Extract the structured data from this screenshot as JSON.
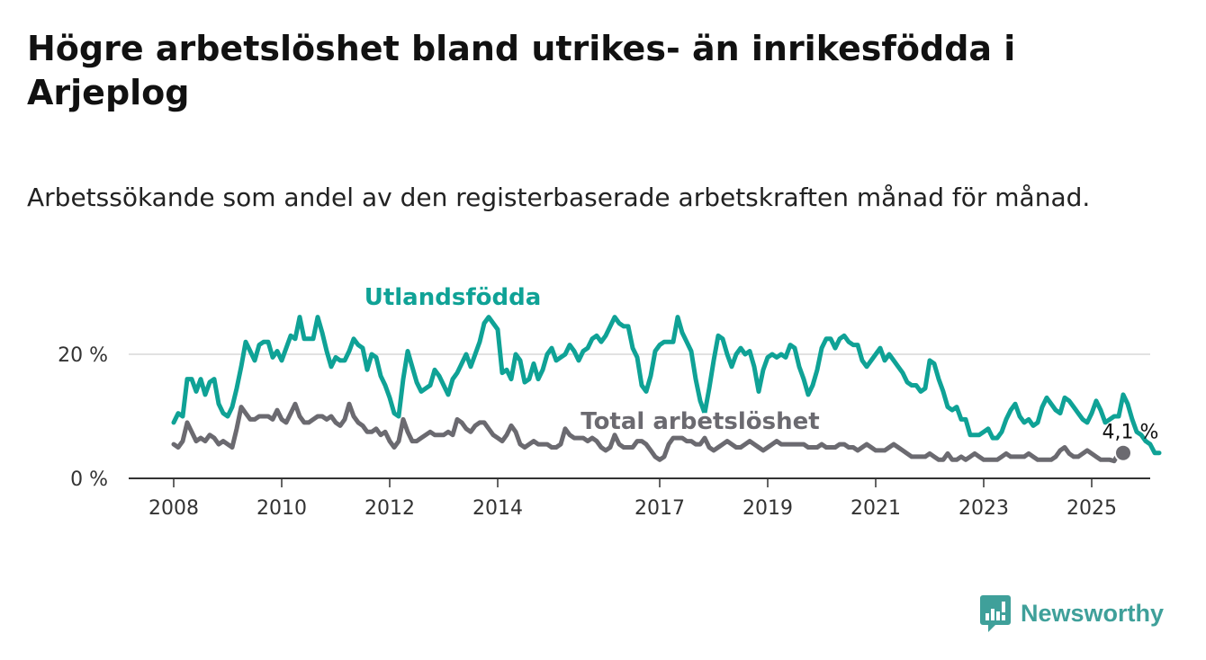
{
  "title": "Högre arbetslöshet bland utrikes- än inrikesfödda i Arjeplog",
  "subtitle": "Arbetssökande som andel av den registerbaserade arbetskraften månad för månad.",
  "brand": "Newsworthy",
  "colors": {
    "foreign": "#0fa296",
    "total": "#6b6a70",
    "grid": "#d9d9d9",
    "axis": "#333333",
    "brand": "#3fa09a"
  },
  "chart_data": {
    "type": "line",
    "x_ticks": [
      "2008",
      "2010",
      "2012",
      "2014",
      "2017",
      "2019",
      "2021",
      "2023",
      "2025"
    ],
    "y_ticks": [
      "0 %",
      "20 %"
    ],
    "ylim": [
      0,
      27
    ],
    "grid": true,
    "end_label": "4,1 %",
    "series": [
      {
        "name": "Utlandsfödda",
        "color": "#0fa296",
        "x_start": "2008-01",
        "x_step": "1 month",
        "values": [
          9,
          10.5,
          10,
          16,
          16,
          14,
          16,
          13.5,
          15.5,
          16,
          12,
          10.5,
          10,
          11.5,
          14.5,
          18,
          22,
          20.5,
          19,
          21.5,
          22,
          22,
          19.5,
          20.5,
          19,
          21,
          23,
          22.5,
          26,
          22.5,
          22.5,
          22.5,
          26,
          23.5,
          20.5,
          18,
          19.5,
          19,
          19,
          20.5,
          22.5,
          21.5,
          21,
          17.5,
          20,
          19.5,
          16.5,
          15,
          13,
          10.5,
          10,
          16,
          20.5,
          18,
          15.5,
          14,
          14.5,
          15,
          17.5,
          16.5,
          15,
          13.5,
          16,
          17,
          18.5,
          20,
          18,
          20,
          22,
          25,
          26,
          25,
          24,
          17,
          17.5,
          16,
          20,
          19,
          15.5,
          16,
          18.5,
          16,
          17.5,
          20,
          21,
          19,
          19.5,
          20,
          21.5,
          20.5,
          19,
          20.5,
          21,
          22.5,
          23,
          22,
          23,
          24.5,
          26,
          25,
          24.5,
          24.5,
          21,
          19.5,
          15,
          14,
          16.5,
          20.5,
          21.5,
          22,
          22,
          22,
          26,
          23.5,
          22,
          20.5,
          16,
          12.5,
          10.5,
          14.5,
          19,
          23,
          22.5,
          20,
          18,
          20,
          21,
          20,
          20.5,
          18,
          14,
          17.5,
          19.5,
          20,
          19.5,
          20,
          19.5,
          21.5,
          21,
          18,
          16,
          13.5,
          15,
          17.5,
          21,
          22.5,
          22.5,
          21,
          22.5,
          23,
          22,
          21.5,
          21.5,
          19,
          18,
          19,
          20,
          21,
          19,
          20,
          19,
          18,
          17,
          15.5,
          15,
          15,
          14,
          14.5,
          19,
          18.5,
          16,
          14,
          11.5,
          11,
          11.5,
          9.5,
          9.5,
          7,
          7,
          7,
          7.5,
          8,
          6.5,
          6.5,
          7.5,
          9.5,
          11,
          12,
          10,
          9,
          9.5,
          8.5,
          9,
          11.5,
          13,
          12,
          11,
          10.5,
          13,
          12.5,
          11.5,
          10.5,
          9.5,
          9,
          10.5,
          12.5,
          11,
          9,
          9.5,
          10,
          10,
          13.5,
          12,
          9.5,
          7.5,
          7,
          6,
          5.5,
          4.1,
          4.1
        ]
      },
      {
        "name": "Total arbetslöshet",
        "color": "#6b6a70",
        "x_start": "2008-01",
        "x_step": "1 month",
        "values": [
          5.5,
          5,
          6,
          9,
          7.5,
          6,
          6.5,
          6,
          7,
          6.5,
          5.5,
          6,
          5.5,
          5,
          8,
          11.5,
          10.5,
          9.5,
          9.5,
          10,
          10,
          10,
          9.5,
          11,
          9.5,
          9,
          10.5,
          12,
          10,
          9,
          9,
          9.5,
          10,
          10,
          9.5,
          10,
          9,
          8.5,
          9.5,
          12,
          10,
          9,
          8.5,
          7.5,
          7.5,
          8,
          7,
          7.5,
          6,
          5,
          6,
          9.5,
          7.5,
          6,
          6,
          6.5,
          7,
          7.5,
          7,
          7,
          7,
          7.5,
          7,
          9.5,
          9,
          8,
          7.5,
          8.5,
          9,
          9,
          8,
          7,
          6.5,
          6,
          7,
          8.5,
          7.5,
          5.5,
          5,
          5.5,
          6,
          5.5,
          5.5,
          5.5,
          5,
          5,
          5.5,
          8,
          7,
          6.5,
          6.5,
          6.5,
          6,
          6.5,
          6,
          5,
          4.5,
          5,
          7,
          5.5,
          5,
          5,
          5,
          6,
          6,
          5.5,
          4.5,
          3.5,
          3,
          3.5,
          5.5,
          6.5,
          6.5,
          6.5,
          6,
          6,
          5.5,
          5.5,
          6.5,
          5,
          4.5,
          5,
          5.5,
          6,
          5.5,
          5,
          5,
          5.5,
          6,
          5.5,
          5,
          4.5,
          5,
          5.5,
          6,
          5.5,
          5.5,
          5.5,
          5.5,
          5.5,
          5.5,
          5,
          5,
          5,
          5.5,
          5,
          5,
          5,
          5.5,
          5.5,
          5,
          5,
          4.5,
          5,
          5.5,
          5,
          4.5,
          4.5,
          4.5,
          5,
          5.5,
          5,
          4.5,
          4,
          3.5,
          3.5,
          3.5,
          3.5,
          4,
          3.5,
          3,
          3,
          4,
          3,
          3,
          3.5,
          3,
          3.5,
          4,
          3.5,
          3,
          3,
          3,
          3,
          3.5,
          4,
          3.5,
          3.5,
          3.5,
          3.5,
          4,
          3.5,
          3,
          3,
          3,
          3,
          3.5,
          4.5,
          5,
          4,
          3.5,
          3.5,
          4,
          4.5,
          4,
          3.5,
          3,
          3,
          3,
          2.8,
          4.1,
          4.1
        ]
      }
    ],
    "series_labels": [
      {
        "name": "Utlandsfödda",
        "anchor": "2013-03",
        "y": 28
      },
      {
        "name": "Total arbetslöshet",
        "anchor": "2017-10",
        "y": 8
      }
    ]
  }
}
